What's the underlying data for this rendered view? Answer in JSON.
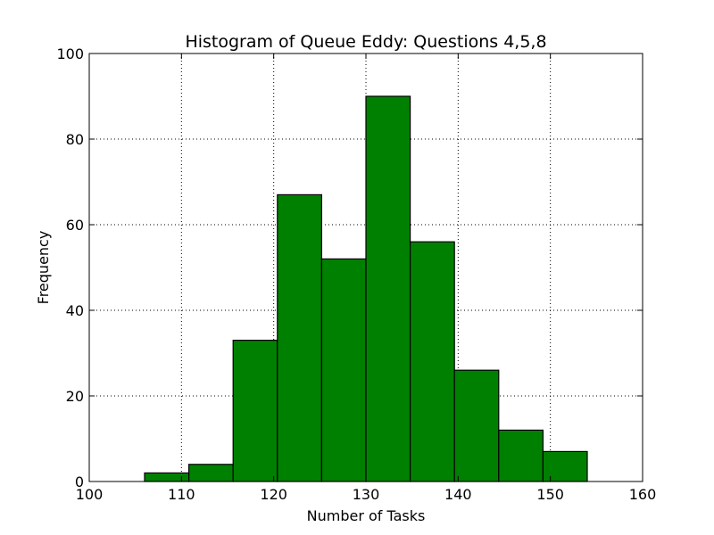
{
  "chart_data": {
    "type": "bar",
    "title": "Histogram of Queue Eddy: Questions 4,5,8",
    "xlabel": "Number of Tasks",
    "ylabel": "Frequency",
    "xlim": [
      100,
      160
    ],
    "ylim": [
      0,
      100
    ],
    "xticks": [
      100,
      110,
      120,
      130,
      140,
      150,
      160
    ],
    "yticks": [
      0,
      20,
      40,
      60,
      80,
      100
    ],
    "grid": true,
    "bar_color": "#008000",
    "bins": [
      {
        "start": 106.0,
        "end": 110.8,
        "value": 2
      },
      {
        "start": 110.8,
        "end": 115.6,
        "value": 4
      },
      {
        "start": 115.6,
        "end": 120.4,
        "value": 33
      },
      {
        "start": 120.4,
        "end": 125.2,
        "value": 67
      },
      {
        "start": 125.2,
        "end": 130.0,
        "value": 52
      },
      {
        "start": 130.0,
        "end": 134.8,
        "value": 90
      },
      {
        "start": 134.8,
        "end": 139.6,
        "value": 56
      },
      {
        "start": 139.6,
        "end": 144.4,
        "value": 26
      },
      {
        "start": 144.4,
        "end": 149.2,
        "value": 12
      },
      {
        "start": 149.2,
        "end": 154.0,
        "value": 7
      }
    ]
  }
}
